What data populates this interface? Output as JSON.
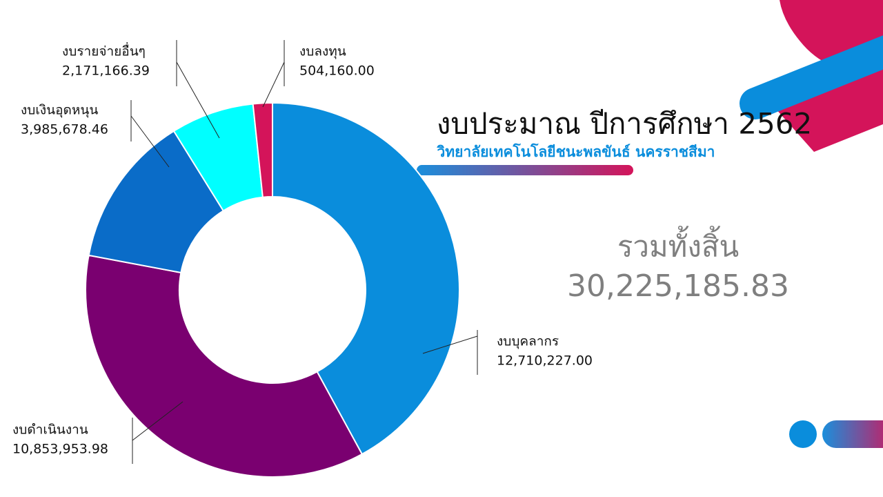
{
  "chart_data": {
    "type": "donut",
    "title": "งบประมาณ ปีการศึกษา 2562",
    "subtitle": "วิทยาลัยเทคโนโลยีชนะพลขันธ์ นครราชสีมา",
    "categories": [
      "งบบุคลากร",
      "งบดำเนินงาน",
      "งบเงินอุดหนุน",
      "งบรายจ่ายอื่นๆ",
      "งบลงทุน"
    ],
    "values": [
      12710227.0,
      10853953.98,
      3985678.46,
      2171166.39,
      504160.0
    ],
    "value_labels": [
      "12,710,227.00",
      "10,853,953.98",
      "3,985,678.46",
      "2,171,166.39",
      "504,160.00"
    ],
    "colors": [
      "#0a8ddc",
      "#7a0070",
      "#0a6cc8",
      "#00ffff",
      "#d4145a"
    ],
    "total_caption": "รวมทั้งสิ้น",
    "total": {
      "value": 30225185.83,
      "label": "30,225,185.83"
    }
  }
}
